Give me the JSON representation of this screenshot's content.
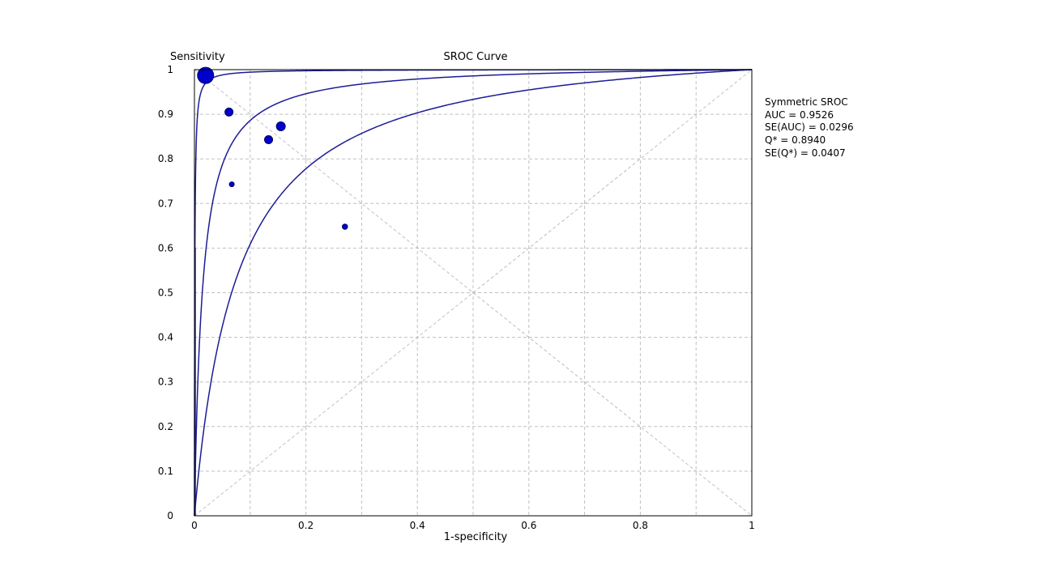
{
  "chart_data": {
    "type": "scatter",
    "title": "SROC Curve",
    "xlabel": "1-specificity",
    "ylabel": "Sensitivity",
    "xlim": [
      0,
      1
    ],
    "ylim": [
      0,
      1
    ],
    "x_ticks": [
      {
        "value": 0,
        "label": "0"
      },
      {
        "value": 0.2,
        "label": "0.2"
      },
      {
        "value": 0.4,
        "label": "0.4"
      },
      {
        "value": 0.6,
        "label": "0.6"
      },
      {
        "value": 0.8,
        "label": "0.8"
      },
      {
        "value": 1,
        "label": "1"
      }
    ],
    "y_ticks": [
      {
        "value": 0,
        "label": "0"
      },
      {
        "value": 0.1,
        "label": "0.1"
      },
      {
        "value": 0.2,
        "label": "0.2"
      },
      {
        "value": 0.3,
        "label": "0.3"
      },
      {
        "value": 0.4,
        "label": "0.4"
      },
      {
        "value": 0.5,
        "label": "0.5"
      },
      {
        "value": 0.6,
        "label": "0.6"
      },
      {
        "value": 0.7,
        "label": "0.7"
      },
      {
        "value": 0.8,
        "label": "0.8"
      },
      {
        "value": 0.9,
        "label": "0.9"
      },
      {
        "value": 1,
        "label": "1"
      }
    ],
    "grid": true,
    "grid_x_step": 0.1,
    "grid_y_step": 0.1,
    "reference_lines": [
      "diagonal",
      "anti-diagonal"
    ],
    "points": [
      {
        "x": 0.02,
        "y": 0.987,
        "weight": 4
      },
      {
        "x": 0.062,
        "y": 0.905,
        "weight": 2
      },
      {
        "x": 0.155,
        "y": 0.873,
        "weight": 2.2
      },
      {
        "x": 0.133,
        "y": 0.843,
        "weight": 2
      },
      {
        "x": 0.067,
        "y": 0.743,
        "weight": 1.2
      },
      {
        "x": 0.27,
        "y": 0.648,
        "weight": 1.3
      }
    ],
    "curves": [
      {
        "role": "upper",
        "odds_ratio": 1580
      },
      {
        "role": "sroc",
        "odds_ratio": 70
      },
      {
        "role": "lower",
        "odds_ratio": 14
      }
    ],
    "annotations": [
      "Symmetric SROC",
      "AUC = 0.9526",
      "SE(AUC) = 0.0296",
      "Q* = 0.8940",
      "SE(Q*) = 0.0407"
    ],
    "annotation_placement": "right",
    "colors": {
      "curve": "#1c1c96",
      "point": "#0000cc",
      "grid": "#c0c0c0",
      "axis": "#000000"
    }
  }
}
